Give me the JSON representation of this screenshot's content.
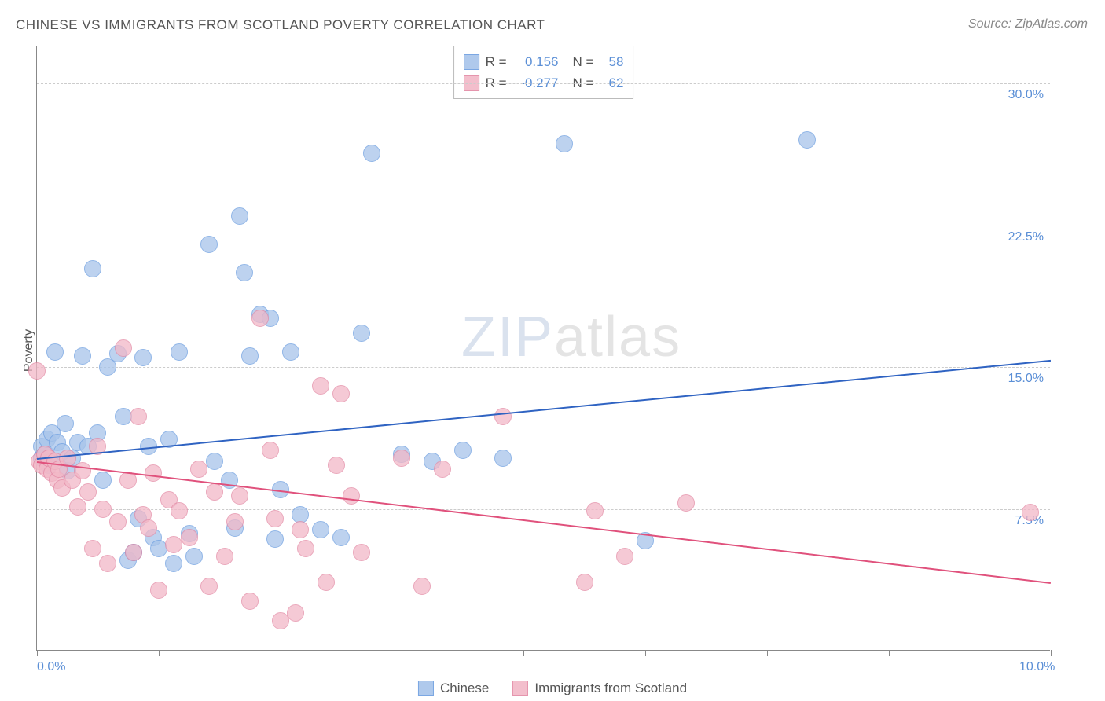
{
  "title": "CHINESE VS IMMIGRANTS FROM SCOTLAND POVERTY CORRELATION CHART",
  "source": "Source: ZipAtlas.com",
  "ylabel": "Poverty",
  "watermark": {
    "zip": "ZIP",
    "atlas": "atlas"
  },
  "chart": {
    "type": "scatter",
    "xlim": [
      0,
      10
    ],
    "ylim": [
      0,
      32
    ],
    "xtick_positions": [
      0,
      1.2,
      2.4,
      3.6,
      4.8,
      6.0,
      7.2,
      8.4,
      10.0
    ],
    "xtick_labels": {
      "0": "0.0%",
      "10": "10.0%"
    },
    "ytick_positions": [
      7.5,
      15.0,
      22.5,
      30.0
    ],
    "ytick_labels": [
      "7.5%",
      "15.0%",
      "22.5%",
      "30.0%"
    ],
    "grid_color": "#cccccc",
    "axis_color": "#888888",
    "background_color": "#ffffff",
    "marker_radius": 11,
    "marker_stroke_width": 1.5,
    "marker_fill_opacity": 0.3,
    "series": [
      {
        "name": "Chinese",
        "label": "Chinese",
        "color": "#6d9ee0",
        "fill": "#a7c4ea",
        "R": "0.156",
        "N": "58",
        "trend": {
          "x1": 0,
          "y1": 10.2,
          "x2": 10,
          "y2": 15.4,
          "color": "#2f63c2",
          "width": 2
        },
        "points": [
          [
            0.05,
            10.2
          ],
          [
            0.05,
            10.8
          ],
          [
            0.08,
            10.4
          ],
          [
            0.1,
            11.2
          ],
          [
            0.12,
            9.8
          ],
          [
            0.15,
            11.5
          ],
          [
            0.15,
            10.0
          ],
          [
            0.18,
            15.8
          ],
          [
            0.2,
            11.0
          ],
          [
            0.25,
            10.5
          ],
          [
            0.28,
            12.0
          ],
          [
            0.3,
            9.5
          ],
          [
            0.35,
            10.2
          ],
          [
            0.4,
            11.0
          ],
          [
            0.45,
            15.6
          ],
          [
            0.5,
            10.8
          ],
          [
            0.55,
            20.2
          ],
          [
            0.6,
            11.5
          ],
          [
            0.65,
            9.0
          ],
          [
            0.7,
            15.0
          ],
          [
            0.8,
            15.7
          ],
          [
            0.85,
            12.4
          ],
          [
            0.9,
            4.8
          ],
          [
            0.95,
            5.2
          ],
          [
            1.0,
            7.0
          ],
          [
            1.05,
            15.5
          ],
          [
            1.1,
            10.8
          ],
          [
            1.15,
            6.0
          ],
          [
            1.2,
            5.4
          ],
          [
            1.3,
            11.2
          ],
          [
            1.35,
            4.6
          ],
          [
            1.4,
            15.8
          ],
          [
            1.5,
            6.2
          ],
          [
            1.55,
            5.0
          ],
          [
            1.7,
            21.5
          ],
          [
            1.75,
            10.0
          ],
          [
            1.9,
            9.0
          ],
          [
            1.95,
            6.5
          ],
          [
            2.0,
            23.0
          ],
          [
            2.05,
            20.0
          ],
          [
            2.1,
            15.6
          ],
          [
            2.2,
            17.8
          ],
          [
            2.3,
            17.6
          ],
          [
            2.35,
            5.9
          ],
          [
            2.4,
            8.5
          ],
          [
            2.5,
            15.8
          ],
          [
            2.6,
            7.2
          ],
          [
            2.8,
            6.4
          ],
          [
            3.0,
            6.0
          ],
          [
            3.2,
            16.8
          ],
          [
            3.3,
            26.3
          ],
          [
            3.6,
            10.4
          ],
          [
            3.9,
            10.0
          ],
          [
            4.2,
            10.6
          ],
          [
            4.6,
            10.2
          ],
          [
            5.2,
            26.8
          ],
          [
            6.0,
            5.8
          ],
          [
            7.6,
            27.0
          ]
        ]
      },
      {
        "name": "Immigrants from Scotland",
        "label": "Immigrants from Scotland",
        "color": "#e38aa5",
        "fill": "#f2b8c7",
        "R": "-0.277",
        "N": "62",
        "trend": {
          "x1": 0,
          "y1": 10.0,
          "x2": 10,
          "y2": 3.6,
          "color": "#e0517c",
          "width": 2
        },
        "points": [
          [
            0.0,
            14.8
          ],
          [
            0.02,
            10.0
          ],
          [
            0.05,
            9.8
          ],
          [
            0.08,
            10.4
          ],
          [
            0.1,
            9.6
          ],
          [
            0.12,
            10.2
          ],
          [
            0.15,
            9.4
          ],
          [
            0.18,
            10.0
          ],
          [
            0.2,
            9.0
          ],
          [
            0.22,
            9.6
          ],
          [
            0.25,
            8.6
          ],
          [
            0.3,
            10.2
          ],
          [
            0.35,
            9.0
          ],
          [
            0.4,
            7.6
          ],
          [
            0.45,
            9.5
          ],
          [
            0.5,
            8.4
          ],
          [
            0.55,
            5.4
          ],
          [
            0.6,
            10.8
          ],
          [
            0.65,
            7.5
          ],
          [
            0.7,
            4.6
          ],
          [
            0.8,
            6.8
          ],
          [
            0.85,
            16.0
          ],
          [
            0.9,
            9.0
          ],
          [
            0.95,
            5.2
          ],
          [
            1.0,
            12.4
          ],
          [
            1.05,
            7.2
          ],
          [
            1.1,
            6.5
          ],
          [
            1.15,
            9.4
          ],
          [
            1.2,
            3.2
          ],
          [
            1.3,
            8.0
          ],
          [
            1.35,
            5.6
          ],
          [
            1.4,
            7.4
          ],
          [
            1.5,
            6.0
          ],
          [
            1.6,
            9.6
          ],
          [
            1.7,
            3.4
          ],
          [
            1.75,
            8.4
          ],
          [
            1.85,
            5.0
          ],
          [
            1.95,
            6.8
          ],
          [
            2.0,
            8.2
          ],
          [
            2.1,
            2.6
          ],
          [
            2.2,
            17.6
          ],
          [
            2.3,
            10.6
          ],
          [
            2.35,
            7.0
          ],
          [
            2.4,
            1.6
          ],
          [
            2.55,
            2.0
          ],
          [
            2.6,
            6.4
          ],
          [
            2.65,
            5.4
          ],
          [
            2.8,
            14.0
          ],
          [
            2.85,
            3.6
          ],
          [
            2.95,
            9.8
          ],
          [
            3.0,
            13.6
          ],
          [
            3.1,
            8.2
          ],
          [
            3.2,
            5.2
          ],
          [
            3.6,
            10.2
          ],
          [
            3.8,
            3.4
          ],
          [
            4.0,
            9.6
          ],
          [
            4.6,
            12.4
          ],
          [
            5.4,
            3.6
          ],
          [
            5.5,
            7.4
          ],
          [
            5.8,
            5.0
          ],
          [
            6.4,
            7.8
          ],
          [
            9.8,
            7.3
          ]
        ]
      }
    ]
  },
  "legend_top": {
    "r_label": "R =",
    "n_label": "N ="
  },
  "legend_bottom": {
    "items": [
      "Chinese",
      "Immigrants from Scotland"
    ]
  }
}
